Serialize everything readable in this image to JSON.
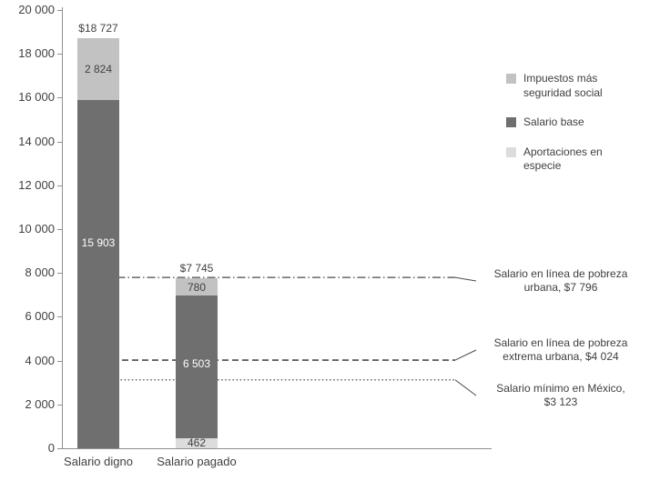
{
  "chart_data": {
    "type": "bar",
    "stacked": true,
    "title": "",
    "xlabel": "",
    "ylabel": "",
    "grid": false,
    "ylim": [
      0,
      20000
    ],
    "yticks": [
      0,
      2000,
      4000,
      6000,
      8000,
      10000,
      12000,
      14000,
      16000,
      18000,
      20000
    ],
    "ytick_labels": [
      "0",
      "2 000",
      "4 000",
      "6 000",
      "8 000",
      "10 000",
      "12 000",
      "14 000",
      "16 000",
      "18 000",
      "20 000"
    ],
    "categories": [
      "Salario digno",
      "Salario pagado"
    ],
    "series": [
      {
        "key": "aportaciones-en-especie",
        "name": "Aportaciones en especie",
        "color": "#dcdcdc",
        "text_color": "#404040",
        "values": [
          0,
          462
        ],
        "value_labels": [
          "",
          "462"
        ]
      },
      {
        "key": "salario-base",
        "name": "Salario base",
        "color": "#6f6f6f",
        "text_color": "#ffffff",
        "values": [
          15903,
          6503
        ],
        "value_labels": [
          "15 903",
          "6 503"
        ],
        "label_at": "bar-center"
      },
      {
        "key": "impuestos-mas-seguridad-social",
        "name": "Impuestos más seguridad social",
        "color": "#c2c2c2",
        "text_color": "#404040",
        "values": [
          2824,
          780
        ],
        "value_labels": [
          "2 824",
          "780"
        ]
      }
    ],
    "totals": [
      18727,
      7745
    ],
    "total_labels": [
      "$18 727",
      "$7 745"
    ],
    "legend": {
      "position": "right",
      "items": [
        {
          "label": "Impuestos más seguridad social",
          "color": "#c2c2c2"
        },
        {
          "label": "Salario base",
          "color": "#6f6f6f"
        },
        {
          "label": "Aportaciones en especie",
          "color": "#dcdcdc"
        }
      ]
    },
    "reference_lines": [
      {
        "value": 7796,
        "style": "dash-dot",
        "label": "Salario en línea de pobreza urbana, $7 796"
      },
      {
        "value": 4024,
        "style": "dashed",
        "label": "Salario en línea de pobreza extrema urbana, $4 024"
      },
      {
        "value": 3123,
        "style": "dotted",
        "label": "Salario mínimo en México, $3 123"
      }
    ]
  }
}
